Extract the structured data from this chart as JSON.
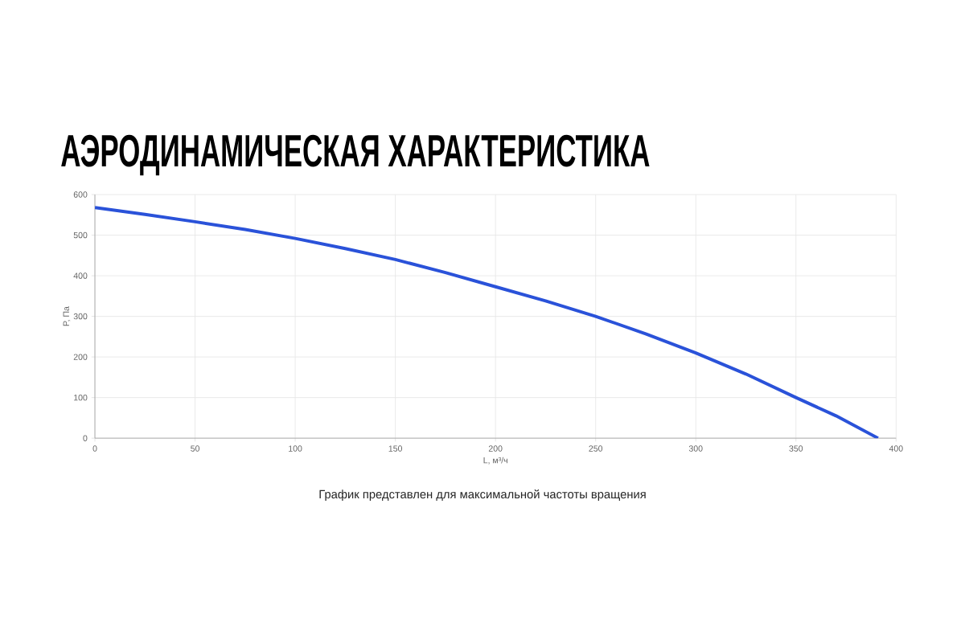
{
  "chart_data": {
    "type": "line",
    "title": "АЭРОДИНАМИЧЕСКАЯ ХАРАКТЕРИСТИКА",
    "xlabel": "L, м³/ч",
    "ylabel": "P, Па",
    "x": [
      0,
      25,
      50,
      75,
      100,
      125,
      150,
      175,
      200,
      225,
      250,
      275,
      300,
      325,
      350,
      370,
      391
    ],
    "values": [
      568,
      551,
      533,
      514,
      492,
      467,
      440,
      408,
      373,
      338,
      300,
      257,
      210,
      158,
      100,
      55,
      0
    ],
    "color": "#2a52d9",
    "xlim": [
      0,
      400
    ],
    "ylim": [
      0,
      600
    ],
    "xticks": [
      0,
      50,
      100,
      150,
      200,
      250,
      300,
      350,
      400
    ],
    "yticks": [
      0,
      100,
      200,
      300,
      400,
      500,
      600
    ],
    "grid": true,
    "annotations": [
      "График представлен для максимальной частоты вращения"
    ]
  }
}
